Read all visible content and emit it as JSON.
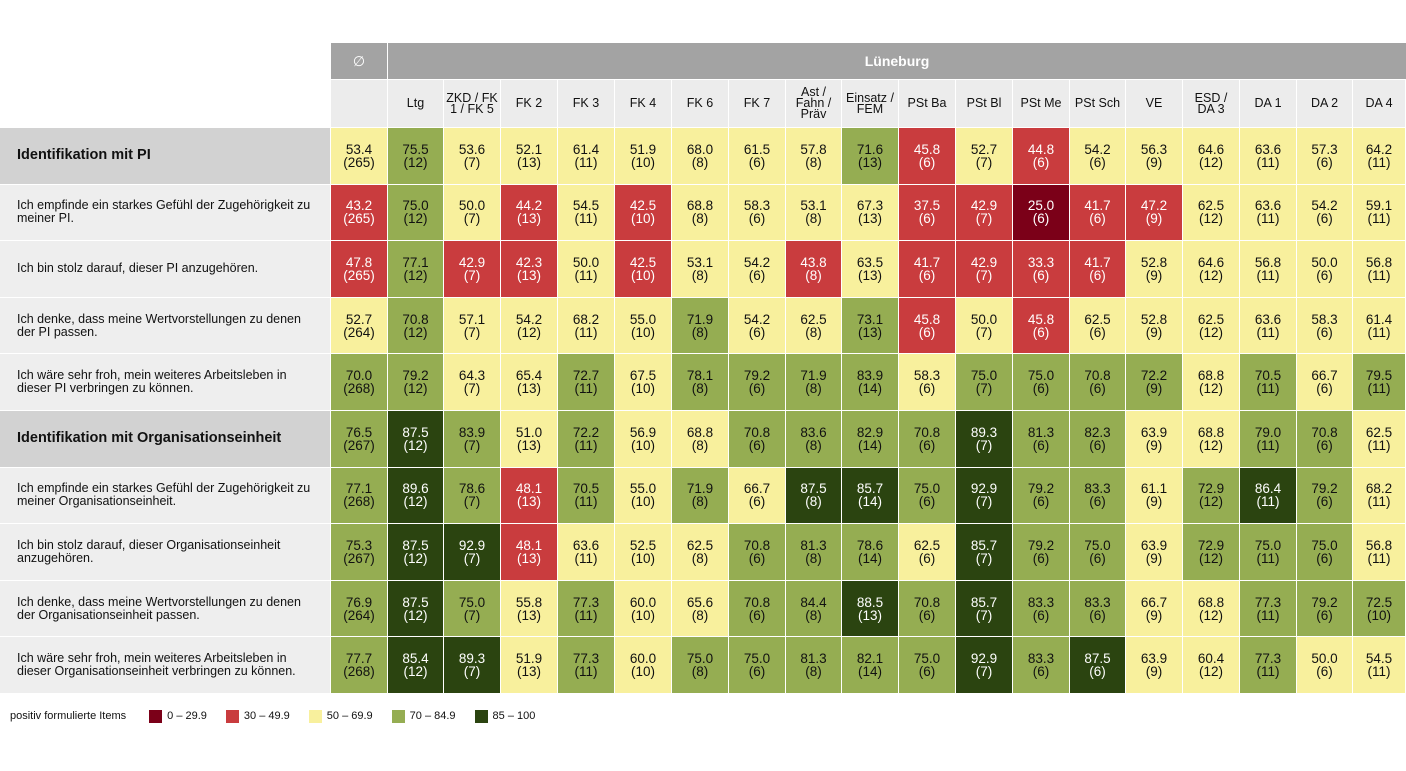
{
  "avg_header": "∅",
  "banner": "Lüneburg",
  "legend": {
    "title": "positiv formulierte Items",
    "items": [
      {
        "label": "0 – 29.9",
        "color": "#7b0018"
      },
      {
        "label": "30 – 49.9",
        "color": "#c93c3e"
      },
      {
        "label": "50 – 69.9",
        "color": "#f8f09d"
      },
      {
        "label": "70 – 84.9",
        "color": "#95ad52"
      },
      {
        "label": "85 – 100",
        "color": "#2b4410"
      }
    ]
  },
  "chart_data": {
    "type": "heatmap",
    "columns": [
      "",
      "Ltg",
      "ZKD / FK 1 / FK 5",
      "FK 2",
      "FK 3",
      "FK 4",
      "FK 6",
      "FK 7",
      "Ast / Fahn / Präv",
      "Einsatz / FEM",
      "PSt Ba",
      "PSt Bl",
      "PSt Me",
      "PSt Sch",
      "VE",
      "ESD / DA 3",
      "DA 1",
      "DA 2",
      "DA 4"
    ],
    "rows": [
      {
        "label": "Identifikation mit PI",
        "header": true,
        "values": [
          53.4,
          75.5,
          53.6,
          52.1,
          61.4,
          51.9,
          68.0,
          61.5,
          57.8,
          71.6,
          45.8,
          52.7,
          44.8,
          54.2,
          56.3,
          64.6,
          63.6,
          57.3,
          64.2
        ],
        "n": [
          265,
          12,
          7,
          13,
          11,
          10,
          8,
          6,
          8,
          13,
          6,
          7,
          6,
          6,
          9,
          12,
          11,
          6,
          11
        ]
      },
      {
        "label": "Ich empfinde ein starkes Gefühl der Zugehörigkeit zu meiner PI.",
        "header": false,
        "values": [
          43.2,
          75.0,
          50.0,
          44.2,
          54.5,
          42.5,
          68.8,
          58.3,
          53.1,
          67.3,
          37.5,
          42.9,
          25.0,
          41.7,
          47.2,
          62.5,
          63.6,
          54.2,
          59.1
        ],
        "n": [
          265,
          12,
          7,
          13,
          11,
          10,
          8,
          6,
          8,
          13,
          6,
          7,
          6,
          6,
          9,
          12,
          11,
          6,
          11
        ]
      },
      {
        "label": "Ich bin stolz darauf, dieser PI anzugehören.",
        "header": false,
        "values": [
          47.8,
          77.1,
          42.9,
          42.3,
          50.0,
          42.5,
          53.1,
          54.2,
          43.8,
          63.5,
          41.7,
          42.9,
          33.3,
          41.7,
          52.8,
          64.6,
          56.8,
          50.0,
          56.8
        ],
        "n": [
          265,
          12,
          7,
          13,
          11,
          10,
          8,
          6,
          8,
          13,
          6,
          7,
          6,
          6,
          9,
          12,
          11,
          6,
          11
        ]
      },
      {
        "label": "Ich denke, dass meine Wertvorstellungen zu denen der PI passen.",
        "header": false,
        "values": [
          52.7,
          70.8,
          57.1,
          54.2,
          68.2,
          55.0,
          71.9,
          54.2,
          62.5,
          73.1,
          45.8,
          50.0,
          45.8,
          62.5,
          52.8,
          62.5,
          63.6,
          58.3,
          61.4
        ],
        "n": [
          264,
          12,
          7,
          12,
          11,
          10,
          8,
          6,
          8,
          13,
          6,
          7,
          6,
          6,
          9,
          12,
          11,
          6,
          11
        ]
      },
      {
        "label": "Ich wäre sehr froh, mein weiteres Arbeitsleben in dieser PI verbringen zu können.",
        "header": false,
        "values": [
          70.0,
          79.2,
          64.3,
          65.4,
          72.7,
          67.5,
          78.1,
          79.2,
          71.9,
          83.9,
          58.3,
          75.0,
          75.0,
          70.8,
          72.2,
          68.8,
          70.5,
          66.7,
          79.5
        ],
        "n": [
          268,
          12,
          7,
          13,
          11,
          10,
          8,
          6,
          8,
          14,
          6,
          7,
          6,
          6,
          9,
          12,
          11,
          6,
          11
        ]
      },
      {
        "label": "Identifikation mit Organisationseinheit",
        "header": true,
        "values": [
          76.5,
          87.5,
          83.9,
          51.0,
          72.2,
          56.9,
          68.8,
          70.8,
          83.6,
          82.9,
          70.8,
          89.3,
          81.3,
          82.3,
          63.9,
          68.8,
          79.0,
          70.8,
          62.5
        ],
        "n": [
          267,
          12,
          7,
          13,
          11,
          10,
          8,
          6,
          8,
          14,
          6,
          7,
          6,
          6,
          9,
          12,
          11,
          6,
          11
        ]
      },
      {
        "label": "Ich empfinde ein starkes Gefühl der Zugehörigkeit zu meiner Organisationseinheit.",
        "header": false,
        "values": [
          77.1,
          89.6,
          78.6,
          48.1,
          70.5,
          55.0,
          71.9,
          66.7,
          87.5,
          85.7,
          75.0,
          92.9,
          79.2,
          83.3,
          61.1,
          72.9,
          86.4,
          79.2,
          68.2
        ],
        "n": [
          268,
          12,
          7,
          13,
          11,
          10,
          8,
          6,
          8,
          14,
          6,
          7,
          6,
          6,
          9,
          12,
          11,
          6,
          11
        ]
      },
      {
        "label": "Ich bin stolz darauf, dieser Organisationseinheit anzugehören.",
        "header": false,
        "values": [
          75.3,
          87.5,
          92.9,
          48.1,
          63.6,
          52.5,
          62.5,
          70.8,
          81.3,
          78.6,
          62.5,
          85.7,
          79.2,
          75.0,
          63.9,
          72.9,
          75.0,
          75.0,
          56.8
        ],
        "n": [
          267,
          12,
          7,
          13,
          11,
          10,
          8,
          6,
          8,
          14,
          6,
          7,
          6,
          6,
          9,
          12,
          11,
          6,
          11
        ]
      },
      {
        "label": "Ich denke, dass meine Wertvorstellungen zu denen der Organisationseinheit passen.",
        "header": false,
        "values": [
          76.9,
          87.5,
          75.0,
          55.8,
          77.3,
          60.0,
          65.6,
          70.8,
          84.4,
          88.5,
          70.8,
          85.7,
          83.3,
          83.3,
          66.7,
          68.8,
          77.3,
          79.2,
          72.5
        ],
        "n": [
          264,
          12,
          7,
          13,
          11,
          10,
          8,
          6,
          8,
          13,
          6,
          7,
          6,
          6,
          9,
          12,
          11,
          6,
          10
        ]
      },
      {
        "label": "Ich wäre sehr froh, mein weiteres Arbeitsleben in dieser Organisationseinheit verbringen zu können.",
        "header": false,
        "values": [
          77.7,
          85.4,
          89.3,
          51.9,
          77.3,
          60.0,
          75.0,
          75.0,
          81.3,
          82.1,
          75.0,
          92.9,
          83.3,
          87.5,
          63.9,
          60.4,
          77.3,
          50.0,
          54.5
        ],
        "n": [
          268,
          12,
          7,
          13,
          11,
          10,
          8,
          6,
          8,
          14,
          6,
          7,
          6,
          6,
          9,
          12,
          11,
          6,
          11
        ]
      }
    ]
  }
}
